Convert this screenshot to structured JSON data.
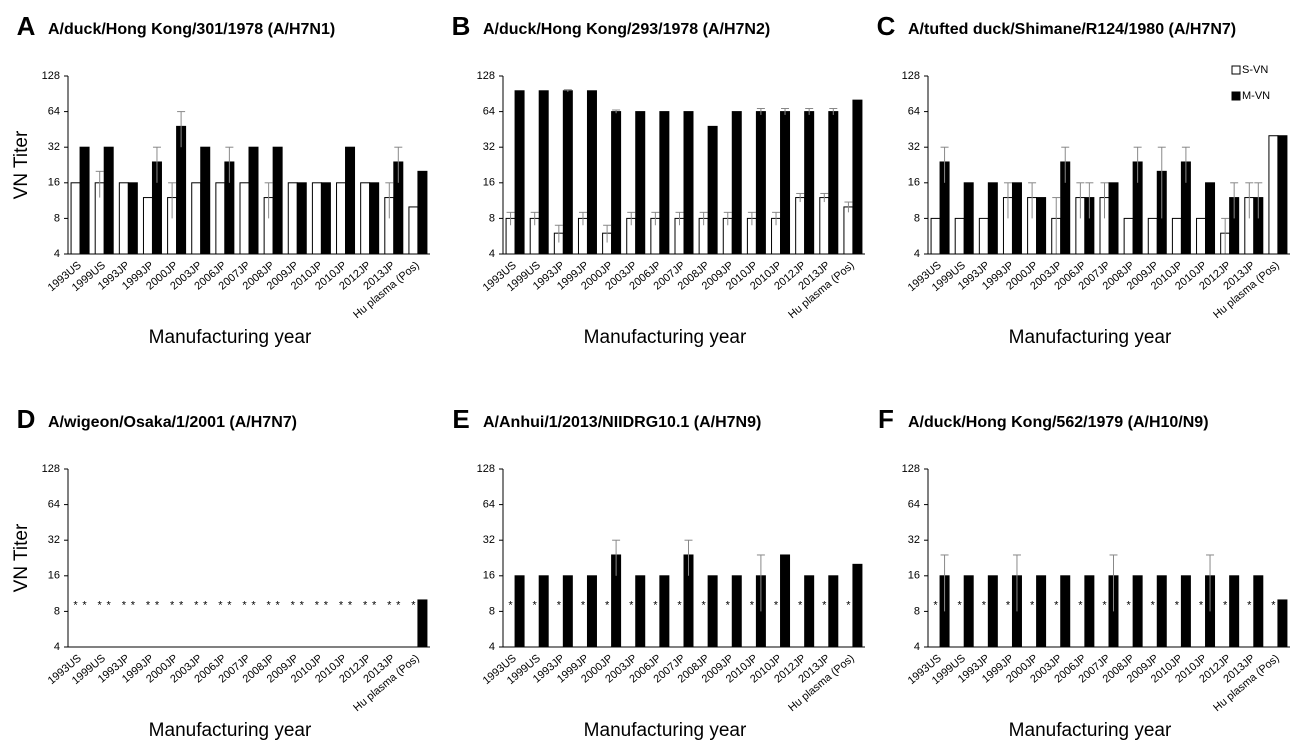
{
  "chart_data": [
    {
      "type": "bar",
      "panel": "A",
      "title": "A/duck/Hong Kong/301/1978 (A/H7N1)",
      "ylabel": "VN Titer",
      "xlabel": "Manufacturing year",
      "categories": [
        "1993US",
        "1999US",
        "1993JP",
        "1999JP",
        "2000JP",
        "2003JP",
        "2006JP",
        "2007JP",
        "2008JP",
        "2009JP",
        "2010JP",
        "2010JP",
        "2012JP",
        "2013JP",
        "Hu plasma (Pos)"
      ],
      "series": [
        {
          "color": "#ffffff",
          "values": [
            16,
            16,
            16,
            12,
            12,
            16,
            16,
            16,
            12,
            16,
            16,
            16,
            16,
            12,
            10
          ],
          "errors": [
            null,
            4,
            null,
            null,
            4,
            null,
            null,
            null,
            4,
            null,
            null,
            null,
            null,
            4,
            null
          ]
        },
        {
          "color": "#000000",
          "values": [
            32,
            32,
            16,
            24,
            48,
            32,
            24,
            32,
            32,
            16,
            16,
            32,
            16,
            24,
            20
          ],
          "errors": [
            null,
            null,
            null,
            8,
            16,
            null,
            8,
            null,
            null,
            null,
            null,
            null,
            null,
            8,
            null
          ]
        }
      ],
      "log_base": 2,
      "ylim": [
        4,
        128
      ],
      "yticks": [
        4,
        8,
        16,
        32,
        64,
        128
      ]
    },
    {
      "type": "bar",
      "panel": "B",
      "title": "A/duck/Hong Kong/293/1978 (A/H7N2)",
      "xlabel": "Manufacturing year",
      "categories": [
        "1993US",
        "1999US",
        "1993JP",
        "1999JP",
        "2000JP",
        "2003JP",
        "2006JP",
        "2007JP",
        "2008JP",
        "2009JP",
        "2010JP",
        "2010JP",
        "2012JP",
        "2013JP",
        "Hu plasma (Pos)"
      ],
      "series": [
        {
          "color": "#ffffff",
          "values": [
            8,
            8,
            6,
            8,
            6,
            8,
            8,
            8,
            8,
            8,
            8,
            8,
            12,
            12,
            10
          ],
          "errors": [
            1,
            1,
            1,
            1,
            1,
            1,
            1,
            1,
            1,
            1,
            1,
            1,
            1,
            1,
            1
          ]
        },
        {
          "color": "#000000",
          "values": [
            96,
            96,
            96,
            96,
            64,
            64,
            64,
            64,
            48,
            64,
            64,
            64,
            64,
            64,
            80
          ],
          "errors": [
            null,
            null,
            2,
            null,
            2,
            null,
            null,
            null,
            null,
            null,
            4,
            4,
            4,
            4,
            null
          ]
        }
      ],
      "log_base": 2,
      "ylim": [
        4,
        128
      ],
      "yticks": [
        4,
        8,
        16,
        32,
        64,
        128
      ]
    },
    {
      "type": "bar",
      "panel": "C",
      "title": "A/tufted duck/Shimane/R124/1980 (A/H7N7)",
      "xlabel": "Manufacturing year",
      "categories": [
        "1993US",
        "1999US",
        "1993JP",
        "1999JP",
        "2000JP",
        "2003JP",
        "2006JP",
        "2007JP",
        "2008JP",
        "2009JP",
        "2010JP",
        "2010JP",
        "2012JP",
        "2013JP",
        "Hu plasma (Pos)"
      ],
      "series": [
        {
          "name": "S-VN",
          "color": "#ffffff",
          "values": [
            8,
            8,
            8,
            12,
            12,
            8,
            12,
            12,
            8,
            8,
            8,
            8,
            6,
            12,
            40
          ],
          "errors": [
            null,
            null,
            null,
            4,
            4,
            4,
            4,
            4,
            null,
            null,
            null,
            null,
            2,
            4,
            null
          ]
        },
        {
          "name": "M-VN",
          "color": "#000000",
          "values": [
            24,
            16,
            16,
            16,
            12,
            24,
            12,
            16,
            24,
            20,
            24,
            16,
            12,
            12,
            40
          ],
          "errors": [
            8,
            null,
            null,
            null,
            null,
            8,
            4,
            null,
            8,
            12,
            8,
            null,
            4,
            4,
            null
          ]
        }
      ],
      "log_base": 2,
      "ylim": [
        4,
        128
      ],
      "yticks": [
        4,
        8,
        16,
        32,
        64,
        128
      ],
      "legend": "upper right"
    },
    {
      "type": "bar",
      "panel": "D",
      "title": "A/wigeon/Osaka/1/2001 (A/H7N7)",
      "ylabel": "VN Titer",
      "xlabel": "Manufacturing year",
      "categories": [
        "1993US",
        "1999US",
        "1993JP",
        "1999JP",
        "2000JP",
        "2003JP",
        "2006JP",
        "2007JP",
        "2008JP",
        "2009JP",
        "2010JP",
        "2010JP",
        "2012JP",
        "2013JP",
        "Hu plasma (Pos)"
      ],
      "series": [
        {
          "color": "#ffffff",
          "values": [
            null,
            null,
            null,
            null,
            null,
            null,
            null,
            null,
            null,
            null,
            null,
            null,
            null,
            null,
            null
          ],
          "value_labels": [
            "*",
            "*",
            "*",
            "*",
            "*",
            "*",
            "*",
            "*",
            "*",
            "*",
            "*",
            "*",
            "*",
            "*",
            "*"
          ]
        },
        {
          "color": "#000000",
          "values": [
            null,
            null,
            null,
            null,
            null,
            null,
            null,
            null,
            null,
            null,
            null,
            null,
            null,
            null,
            10
          ],
          "value_labels": [
            "*",
            "*",
            "*",
            "*",
            "*",
            "*",
            "*",
            "*",
            "*",
            "*",
            "*",
            "*",
            "*",
            "*",
            null
          ]
        }
      ],
      "log_base": 2,
      "ylim": [
        4,
        128
      ],
      "yticks": [
        4,
        8,
        16,
        32,
        64,
        128
      ]
    },
    {
      "type": "bar",
      "panel": "E",
      "title": "A/Anhui/1/2013/NIIDRG10.1 (A/H7N9)",
      "xlabel": "Manufacturing year",
      "categories": [
        "1993US",
        "1999US",
        "1993JP",
        "1999JP",
        "2000JP",
        "2003JP",
        "2006JP",
        "2007JP",
        "2008JP",
        "2009JP",
        "2010JP",
        "2010JP",
        "2012JP",
        "2013JP",
        "Hu plasma (Pos)"
      ],
      "series": [
        {
          "color": "#ffffff",
          "values": [
            null,
            null,
            null,
            null,
            null,
            null,
            null,
            null,
            null,
            null,
            null,
            null,
            null,
            null,
            null
          ],
          "value_labels": [
            "*",
            "*",
            "*",
            "*",
            "*",
            "*",
            "*",
            "*",
            "*",
            "*",
            "*",
            "*",
            "*",
            "*",
            "*"
          ]
        },
        {
          "color": "#000000",
          "values": [
            16,
            16,
            16,
            16,
            24,
            16,
            16,
            24,
            16,
            16,
            16,
            24,
            16,
            16,
            20
          ],
          "errors": [
            null,
            null,
            null,
            null,
            8,
            null,
            null,
            8,
            null,
            null,
            8,
            null,
            null,
            null,
            null
          ]
        }
      ],
      "log_base": 2,
      "ylim": [
        4,
        128
      ],
      "yticks": [
        4,
        8,
        16,
        32,
        64,
        128
      ]
    },
    {
      "type": "bar",
      "panel": "F",
      "title": "A/duck/Hong Kong/562/1979 (A/H10/N9)",
      "xlabel": "Manufacturing year",
      "categories": [
        "1993US",
        "1999US",
        "1993JP",
        "1999JP",
        "2000JP",
        "2003JP",
        "2006JP",
        "2007JP",
        "2008JP",
        "2009JP",
        "2010JP",
        "2010JP",
        "2012JP",
        "2013JP",
        "Hu plasma (Pos)"
      ],
      "series": [
        {
          "color": "#ffffff",
          "values": [
            null,
            null,
            null,
            null,
            null,
            null,
            null,
            null,
            null,
            null,
            null,
            null,
            null,
            null,
            null
          ],
          "value_labels": [
            "*",
            "*",
            "*",
            "*",
            "*",
            "*",
            "*",
            "*",
            "*",
            "*",
            "*",
            "*",
            "*",
            "*",
            "*"
          ]
        },
        {
          "color": "#000000",
          "values": [
            16,
            16,
            16,
            16,
            16,
            16,
            16,
            16,
            16,
            16,
            16,
            16,
            16,
            16,
            10
          ],
          "errors": [
            8,
            null,
            null,
            8,
            null,
            null,
            null,
            8,
            null,
            null,
            null,
            8,
            null,
            null,
            null
          ]
        }
      ],
      "log_base": 2,
      "ylim": [
        4,
        128
      ],
      "yticks": [
        4,
        8,
        16,
        32,
        64,
        128
      ]
    }
  ]
}
